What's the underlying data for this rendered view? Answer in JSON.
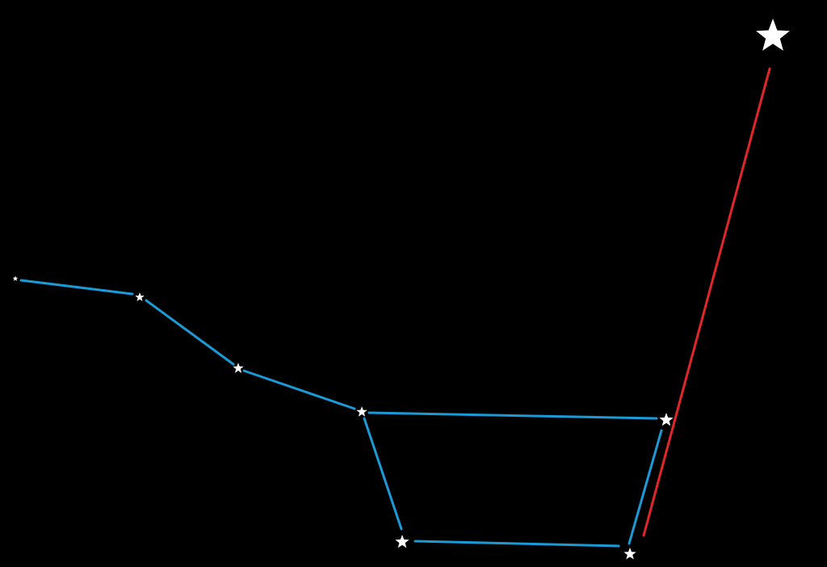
{
  "colors": {
    "background": "#000000",
    "constellation_line": "#1a9ad6",
    "pointer_line": "#e0262b",
    "star": "#ffffff"
  },
  "icons": {
    "star": "star-icon"
  }
}
